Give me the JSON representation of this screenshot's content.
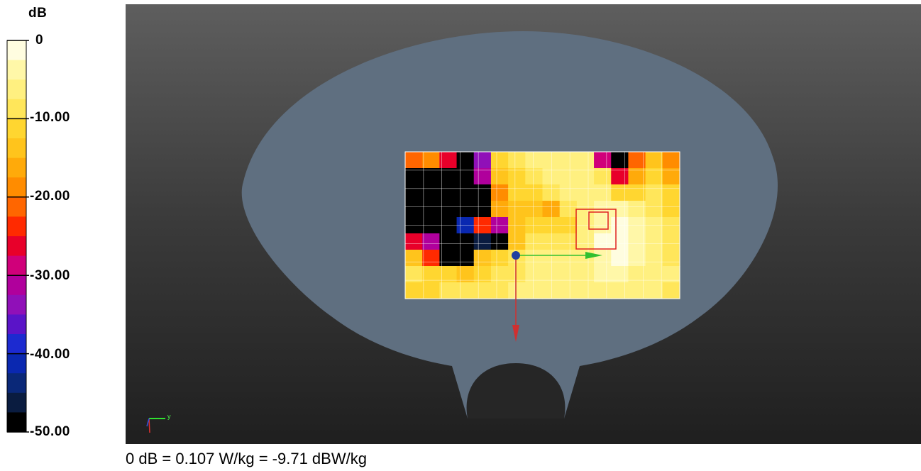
{
  "colorbar": {
    "unit": "dB",
    "tick_labels": [
      "0",
      "-10.00",
      "-20.00",
      "-30.00",
      "-40.00",
      "-50.00"
    ],
    "colors": [
      "#fffde0",
      "#fff7a8",
      "#fff080",
      "#ffe65a",
      "#ffd630",
      "#ffc41c",
      "#ffaa0a",
      "#ff8c00",
      "#ff6600",
      "#ff2a00",
      "#e8002a",
      "#d0007a",
      "#b0009c",
      "#9010b8",
      "#5a14c8",
      "#1c2ad0",
      "#0a28b0",
      "#0a2878",
      "#0a1c40",
      "#000000"
    ]
  },
  "scan_grid": {
    "columns": 15,
    "rows": 8,
    "values_db": [
      [
        -22,
        -18,
        -25,
        -50,
        -34,
        -12,
        -9,
        -7,
        -6,
        -6,
        -6,
        -28,
        -50,
        -20,
        -13,
        -18
      ],
      [
        -50,
        -50,
        -50,
        -50,
        -30,
        -14,
        -11,
        -8,
        -7,
        -5,
        -6,
        -9,
        -25,
        -16,
        -12,
        -15
      ],
      [
        -50,
        -50,
        -50,
        -50,
        -50,
        -19,
        -12,
        -10,
        -9,
        -6,
        -5,
        -6,
        -10,
        -10,
        -9,
        -12
      ],
      [
        -50,
        -50,
        -50,
        -50,
        -50,
        -16,
        -13,
        -14,
        -16,
        -9,
        -5,
        -3,
        -4,
        -7,
        -9,
        -11
      ],
      [
        -50,
        -50,
        -50,
        -40,
        -24,
        -31,
        -14,
        -11,
        -12,
        -10,
        -6,
        -3,
        -2,
        -4,
        -7,
        -9
      ],
      [
        -26,
        -32,
        -50,
        -50,
        -45,
        -50,
        -14,
        -8,
        -9,
        -8,
        -5,
        -2,
        -1,
        -3,
        -6,
        -8
      ],
      [
        -14,
        -23,
        -50,
        -50,
        -13,
        -12,
        -9,
        -7,
        -7,
        -6,
        -5,
        -3,
        -2,
        -4,
        -6,
        -8
      ],
      [
        -9,
        -11,
        -12,
        -13,
        -10,
        -8,
        -8,
        -7,
        -6,
        -5,
        -5,
        -4,
        -4,
        -5,
        -6,
        -7
      ],
      [
        -11,
        -10,
        -9,
        -9,
        -8,
        -8,
        -7,
        -7,
        -6,
        -6,
        -5,
        -5,
        -5,
        -6,
        -7,
        -8
      ]
    ]
  },
  "footer": {
    "reference": "0 dB = 0.107 W/kg = -9.71 dBW/kg"
  },
  "axes_indicator": {
    "y_label": "y"
  }
}
